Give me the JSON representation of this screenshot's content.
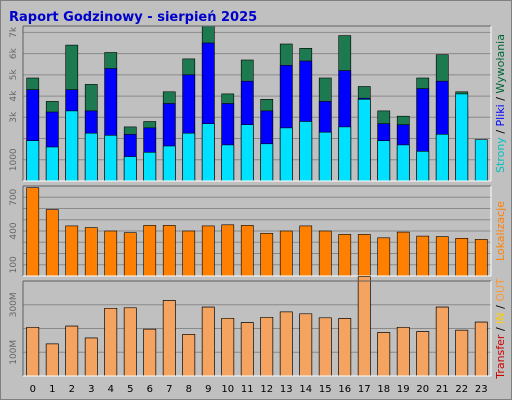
{
  "chart_data": {
    "type": "bar",
    "title": "Raport Godzinowy -   sierpień 2025",
    "categories": [
      "0",
      "1",
      "2",
      "3",
      "4",
      "5",
      "6",
      "7",
      "8",
      "9",
      "10",
      "11",
      "12",
      "13",
      "14",
      "15",
      "16",
      "17",
      "18",
      "19",
      "20",
      "21",
      "22",
      "23"
    ],
    "panels": [
      {
        "id": "top",
        "ylim": [
          0,
          7300
        ],
        "tick_labels": [
          "1000",
          "3k",
          "4k",
          "5k",
          "6k",
          "7k"
        ],
        "tick_values": [
          1000,
          3000,
          4000,
          5000,
          6000,
          7000
        ],
        "gridlines": [
          1000,
          2000,
          3000,
          4000,
          5000,
          6000,
          7000
        ],
        "ylabel_parts": [
          {
            "text": "Strony",
            "color": "#00c0c0"
          },
          {
            "text": " / ",
            "color": "#000000"
          },
          {
            "text": "Pliki",
            "color": "#0000ff"
          },
          {
            "text": " / ",
            "color": "#000000"
          },
          {
            "text": "Wywołania",
            "color": "#006633"
          }
        ],
        "series": [
          {
            "color": "#1d7a50",
            "values": [
              4850,
              3750,
              6400,
              4550,
              6050,
              2550,
              2800,
              4200,
              5750,
              7300,
              4100,
              5700,
              3850,
              6450,
              6250,
              4850,
              6850,
              4450,
              3300,
              3050,
              4850,
              5950,
              4200,
              0
            ]
          },
          {
            "color": "#0000ff",
            "values": [
              4300,
              3250,
              4300,
              3300,
              5300,
              2200,
              2500,
              3650,
              5000,
              6500,
              3650,
              4700,
              3300,
              5450,
              5650,
              3750,
              5200,
              3900,
              2700,
              2650,
              4350,
              4700,
              3400,
              0
            ]
          },
          {
            "color": "#00e0ff",
            "values": [
              1900,
              1600,
              3300,
              2250,
              2150,
              1150,
              1350,
              1650,
              2250,
              2700,
              1700,
              2650,
              1750,
              2500,
              2800,
              2300,
              2550,
              3850,
              1900,
              1700,
              1400,
              2200,
              4100,
              1950
            ]
          }
        ]
      },
      {
        "id": "middle",
        "ylim": [
          0,
          800
        ],
        "tick_labels": [
          "100",
          "400",
          "700"
        ],
        "tick_values": [
          100,
          400,
          700
        ],
        "gridlines": [
          100,
          200,
          300,
          400,
          500,
          600,
          700
        ],
        "ylabel_parts": [
          {
            "text": "Lokalizacje",
            "color": "#ff8000"
          }
        ],
        "series": [
          {
            "color": "#ff8000",
            "values": [
              785,
              590,
              445,
              430,
              400,
              385,
              450,
              450,
              400,
              445,
              455,
              450,
              380,
              400,
              445,
              400,
              370,
              370,
              340,
              390,
              355,
              350,
              335,
              325
            ]
          }
        ]
      },
      {
        "id": "bottom",
        "ylim": [
          0,
          400
        ],
        "tick_labels": [
          "100M",
          "300M"
        ],
        "tick_values": [
          100,
          300
        ],
        "gridlines": [
          100,
          200,
          300
        ],
        "ylabel_parts": [
          {
            "text": "Transfer",
            "color": "#cc0000"
          },
          {
            "text": " / ",
            "color": "#000000"
          },
          {
            "text": "IN",
            "color": "#ffcc00"
          },
          {
            "text": " / ",
            "color": "#000000"
          },
          {
            "text": "OUT",
            "color": "#ff9933"
          }
        ],
        "series": [
          {
            "color": "#cc0000",
            "values": [
              205,
              135,
              210,
              160,
              285,
              287,
              197,
              318,
              175,
              290,
              243,
              225,
              247,
              270,
              262,
              245,
              242,
              418,
              183,
              205,
              187,
              290,
              193,
              227
            ]
          },
          {
            "color": "#f4a460",
            "values": [
              205,
              135,
              210,
              160,
              285,
              287,
              197,
              318,
              175,
              290,
              243,
              225,
              247,
              270,
              262,
              245,
              242,
              418,
              183,
              205,
              187,
              290,
              193,
              227
            ]
          }
        ]
      }
    ]
  }
}
